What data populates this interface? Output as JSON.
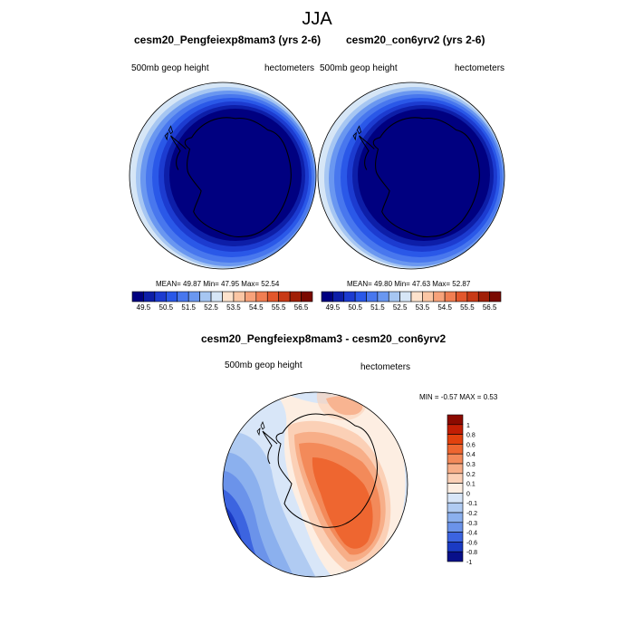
{
  "title": "JJA",
  "colors": {
    "ocean_deep": "#0a0a8a",
    "land_outline": "#000000"
  },
  "panels": [
    {
      "title": "cesm20_Pengfeiexp8mam3 (yrs 2-6)",
      "left_label": "500mb geop height",
      "right_label": "hectometers",
      "stats": "MEAN=  49.87  Min=  47.95  Max=  52.54"
    },
    {
      "title": "cesm20_con6yrv2 (yrs 2-6)",
      "left_label": "500mb geop height",
      "right_label": "hectometers",
      "stats": "MEAN=  49.80  Min=  47.63  Max=  52.87"
    },
    {
      "title": "cesm20_Pengfeiexp8mam3 - cesm20_con6yrv2",
      "left_label": "500mb geop height",
      "right_label": "hectometers",
      "stats": "MIN =  -0.57 MAX =   0.53"
    }
  ],
  "chart_data": [
    {
      "type": "heatmap",
      "title": "cesm20_Pengfeiexp8mam3 (yrs 2-6)",
      "variable": "500mb geop height",
      "units": "hectometers",
      "mean": 49.87,
      "min": 47.95,
      "max": 52.54,
      "colorbar": {
        "levels": [
          49.5,
          50.0,
          50.5,
          51.0,
          51.5,
          52.0,
          52.5,
          53.0,
          53.5,
          54.0,
          54.5,
          55.0,
          55.5,
          56.0,
          56.5
        ],
        "tick_labels": [
          "49.5",
          "50.5",
          "51.5",
          "52.5",
          "53.5",
          "54.5",
          "55.5",
          "56.5"
        ],
        "colors": [
          "#000080",
          "#0d1ea8",
          "#1c3bd0",
          "#2a58e8",
          "#4877ee",
          "#6a97f0",
          "#a6c6f2",
          "#d6e6f6",
          "#fde2cc",
          "#fbc6a4",
          "#f7a27a",
          "#f07e52",
          "#e2572c",
          "#c83a16",
          "#a01f06",
          "#7a0a00"
        ]
      }
    },
    {
      "type": "heatmap",
      "title": "cesm20_con6yrv2 (yrs 2-6)",
      "variable": "500mb geop height",
      "units": "hectometers",
      "mean": 49.8,
      "min": 47.63,
      "max": 52.87,
      "colorbar": {
        "levels": [
          49.5,
          50.0,
          50.5,
          51.0,
          51.5,
          52.0,
          52.5,
          53.0,
          53.5,
          54.0,
          54.5,
          55.0,
          55.5,
          56.0,
          56.5
        ],
        "tick_labels": [
          "49.5",
          "50.5",
          "51.5",
          "52.5",
          "53.5",
          "54.5",
          "55.5",
          "56.5"
        ],
        "colors": [
          "#000080",
          "#0d1ea8",
          "#1c3bd0",
          "#2a58e8",
          "#4877ee",
          "#6a97f0",
          "#a6c6f2",
          "#d6e6f6",
          "#fde2cc",
          "#fbc6a4",
          "#f7a27a",
          "#f07e52",
          "#e2572c",
          "#c83a16",
          "#a01f06",
          "#7a0a00"
        ]
      }
    },
    {
      "type": "heatmap",
      "title": "cesm20_Pengfeiexp8mam3 - cesm20_con6yrv2",
      "variable": "500mb geop height",
      "units": "hectometers",
      "min": -0.57,
      "max": 0.53,
      "colorbar": {
        "levels": [
          1,
          0.8,
          0.6,
          0.4,
          0.3,
          0.2,
          0.1,
          0,
          -0.1,
          -0.2,
          -0.3,
          -0.4,
          -0.6,
          -0.8,
          -1
        ],
        "tick_labels": [
          "1",
          "0.8",
          "0.6",
          "0.4",
          "0.3",
          "0.2",
          "0.1",
          "0",
          "-0.1",
          "-0.2",
          "-0.3",
          "-0.4",
          "-0.6",
          "-0.8",
          "-1"
        ],
        "colors": [
          "#8b0a00",
          "#c21e04",
          "#e2410e",
          "#ee6630",
          "#f38a5a",
          "#f7ae88",
          "#fbd0b6",
          "#fdeee2",
          "#d8e6f8",
          "#b0cbf2",
          "#8bb0ee",
          "#6b93ea",
          "#3c64e0",
          "#1b3bc4",
          "#08108a"
        ]
      }
    }
  ]
}
